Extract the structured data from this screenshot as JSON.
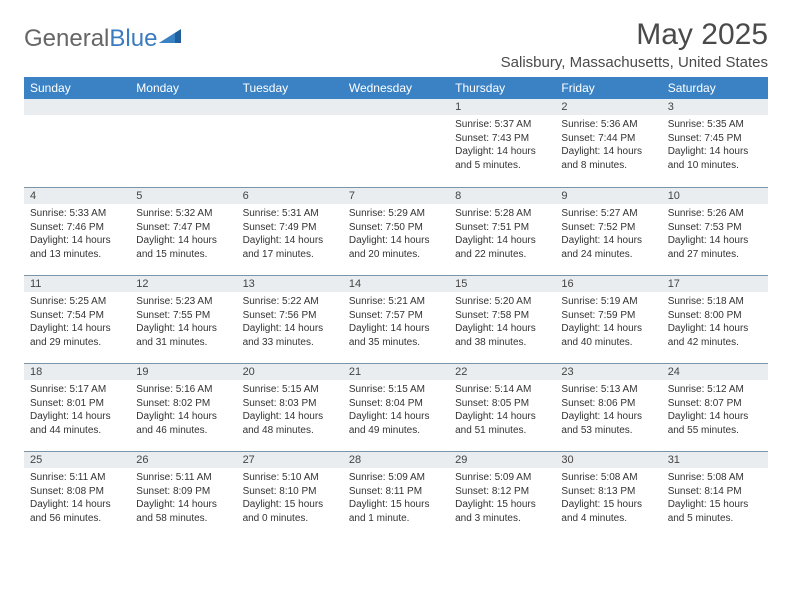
{
  "brand": {
    "part1": "General",
    "part2": "Blue"
  },
  "title": "May 2025",
  "location": "Salisbury, Massachusetts, United States",
  "colors": {
    "header_bg": "#3b82c4",
    "header_text": "#ffffff",
    "daynum_bg": "#e9edf0",
    "rule": "#7a95aa",
    "text": "#333333"
  },
  "dows": [
    "Sunday",
    "Monday",
    "Tuesday",
    "Wednesday",
    "Thursday",
    "Friday",
    "Saturday"
  ],
  "weeks": [
    [
      {
        "n": "",
        "sr": "",
        "ss": "",
        "dl": ""
      },
      {
        "n": "",
        "sr": "",
        "ss": "",
        "dl": ""
      },
      {
        "n": "",
        "sr": "",
        "ss": "",
        "dl": ""
      },
      {
        "n": "",
        "sr": "",
        "ss": "",
        "dl": ""
      },
      {
        "n": "1",
        "sr": "Sunrise: 5:37 AM",
        "ss": "Sunset: 7:43 PM",
        "dl": "Daylight: 14 hours and 5 minutes."
      },
      {
        "n": "2",
        "sr": "Sunrise: 5:36 AM",
        "ss": "Sunset: 7:44 PM",
        "dl": "Daylight: 14 hours and 8 minutes."
      },
      {
        "n": "3",
        "sr": "Sunrise: 5:35 AM",
        "ss": "Sunset: 7:45 PM",
        "dl": "Daylight: 14 hours and 10 minutes."
      }
    ],
    [
      {
        "n": "4",
        "sr": "Sunrise: 5:33 AM",
        "ss": "Sunset: 7:46 PM",
        "dl": "Daylight: 14 hours and 13 minutes."
      },
      {
        "n": "5",
        "sr": "Sunrise: 5:32 AM",
        "ss": "Sunset: 7:47 PM",
        "dl": "Daylight: 14 hours and 15 minutes."
      },
      {
        "n": "6",
        "sr": "Sunrise: 5:31 AM",
        "ss": "Sunset: 7:49 PM",
        "dl": "Daylight: 14 hours and 17 minutes."
      },
      {
        "n": "7",
        "sr": "Sunrise: 5:29 AM",
        "ss": "Sunset: 7:50 PM",
        "dl": "Daylight: 14 hours and 20 minutes."
      },
      {
        "n": "8",
        "sr": "Sunrise: 5:28 AM",
        "ss": "Sunset: 7:51 PM",
        "dl": "Daylight: 14 hours and 22 minutes."
      },
      {
        "n": "9",
        "sr": "Sunrise: 5:27 AM",
        "ss": "Sunset: 7:52 PM",
        "dl": "Daylight: 14 hours and 24 minutes."
      },
      {
        "n": "10",
        "sr": "Sunrise: 5:26 AM",
        "ss": "Sunset: 7:53 PM",
        "dl": "Daylight: 14 hours and 27 minutes."
      }
    ],
    [
      {
        "n": "11",
        "sr": "Sunrise: 5:25 AM",
        "ss": "Sunset: 7:54 PM",
        "dl": "Daylight: 14 hours and 29 minutes."
      },
      {
        "n": "12",
        "sr": "Sunrise: 5:23 AM",
        "ss": "Sunset: 7:55 PM",
        "dl": "Daylight: 14 hours and 31 minutes."
      },
      {
        "n": "13",
        "sr": "Sunrise: 5:22 AM",
        "ss": "Sunset: 7:56 PM",
        "dl": "Daylight: 14 hours and 33 minutes."
      },
      {
        "n": "14",
        "sr": "Sunrise: 5:21 AM",
        "ss": "Sunset: 7:57 PM",
        "dl": "Daylight: 14 hours and 35 minutes."
      },
      {
        "n": "15",
        "sr": "Sunrise: 5:20 AM",
        "ss": "Sunset: 7:58 PM",
        "dl": "Daylight: 14 hours and 38 minutes."
      },
      {
        "n": "16",
        "sr": "Sunrise: 5:19 AM",
        "ss": "Sunset: 7:59 PM",
        "dl": "Daylight: 14 hours and 40 minutes."
      },
      {
        "n": "17",
        "sr": "Sunrise: 5:18 AM",
        "ss": "Sunset: 8:00 PM",
        "dl": "Daylight: 14 hours and 42 minutes."
      }
    ],
    [
      {
        "n": "18",
        "sr": "Sunrise: 5:17 AM",
        "ss": "Sunset: 8:01 PM",
        "dl": "Daylight: 14 hours and 44 minutes."
      },
      {
        "n": "19",
        "sr": "Sunrise: 5:16 AM",
        "ss": "Sunset: 8:02 PM",
        "dl": "Daylight: 14 hours and 46 minutes."
      },
      {
        "n": "20",
        "sr": "Sunrise: 5:15 AM",
        "ss": "Sunset: 8:03 PM",
        "dl": "Daylight: 14 hours and 48 minutes."
      },
      {
        "n": "21",
        "sr": "Sunrise: 5:15 AM",
        "ss": "Sunset: 8:04 PM",
        "dl": "Daylight: 14 hours and 49 minutes."
      },
      {
        "n": "22",
        "sr": "Sunrise: 5:14 AM",
        "ss": "Sunset: 8:05 PM",
        "dl": "Daylight: 14 hours and 51 minutes."
      },
      {
        "n": "23",
        "sr": "Sunrise: 5:13 AM",
        "ss": "Sunset: 8:06 PM",
        "dl": "Daylight: 14 hours and 53 minutes."
      },
      {
        "n": "24",
        "sr": "Sunrise: 5:12 AM",
        "ss": "Sunset: 8:07 PM",
        "dl": "Daylight: 14 hours and 55 minutes."
      }
    ],
    [
      {
        "n": "25",
        "sr": "Sunrise: 5:11 AM",
        "ss": "Sunset: 8:08 PM",
        "dl": "Daylight: 14 hours and 56 minutes."
      },
      {
        "n": "26",
        "sr": "Sunrise: 5:11 AM",
        "ss": "Sunset: 8:09 PM",
        "dl": "Daylight: 14 hours and 58 minutes."
      },
      {
        "n": "27",
        "sr": "Sunrise: 5:10 AM",
        "ss": "Sunset: 8:10 PM",
        "dl": "Daylight: 15 hours and 0 minutes."
      },
      {
        "n": "28",
        "sr": "Sunrise: 5:09 AM",
        "ss": "Sunset: 8:11 PM",
        "dl": "Daylight: 15 hours and 1 minute."
      },
      {
        "n": "29",
        "sr": "Sunrise: 5:09 AM",
        "ss": "Sunset: 8:12 PM",
        "dl": "Daylight: 15 hours and 3 minutes."
      },
      {
        "n": "30",
        "sr": "Sunrise: 5:08 AM",
        "ss": "Sunset: 8:13 PM",
        "dl": "Daylight: 15 hours and 4 minutes."
      },
      {
        "n": "31",
        "sr": "Sunrise: 5:08 AM",
        "ss": "Sunset: 8:14 PM",
        "dl": "Daylight: 15 hours and 5 minutes."
      }
    ]
  ]
}
